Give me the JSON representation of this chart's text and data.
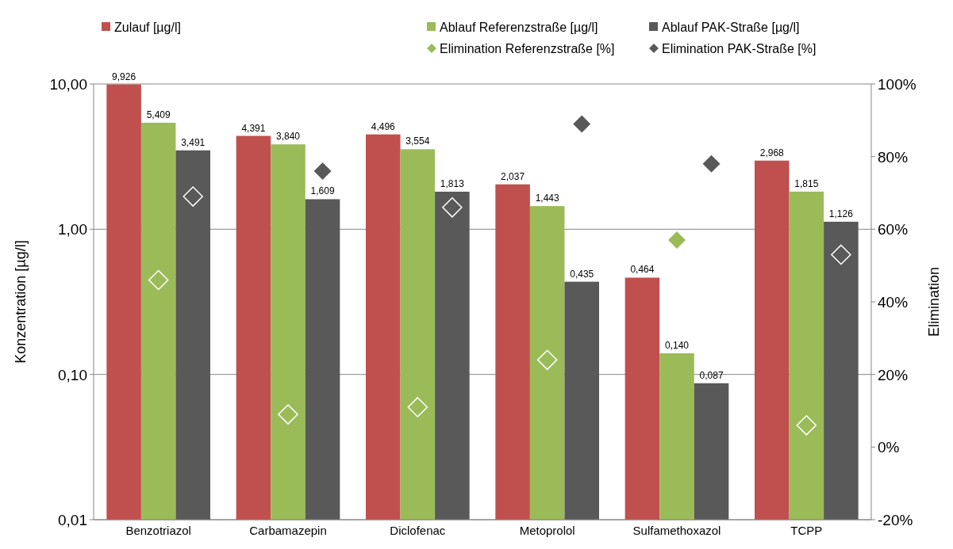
{
  "chart_data": {
    "type": "bar",
    "categories": [
      "Benzotriazol",
      "Carbamazepin",
      "Diclofenac",
      "Metoprolol",
      "Sulfamethoxazol",
      "TCPP"
    ],
    "ylabel": "Konzentration [µg/l]",
    "y2label": "Elimination",
    "log": "y",
    "grid": "y",
    "legend": "top",
    "marker": "diamond",
    "ylim": [
      0.01,
      10
    ],
    "yticks": [
      {
        "value": 0.01,
        "label": "0,01"
      },
      {
        "value": 0.1,
        "label": "0,10"
      },
      {
        "value": 1,
        "label": "1,00"
      },
      {
        "value": 10,
        "label": "10,00"
      }
    ],
    "y2lim": [
      -20,
      100
    ],
    "y2ticks": [
      {
        "value": -20,
        "label": "-20%"
      },
      {
        "value": 0,
        "label": "0%"
      },
      {
        "value": 20,
        "label": "20%"
      },
      {
        "value": 40,
        "label": "40%"
      },
      {
        "value": 60,
        "label": "60%"
      },
      {
        "value": 80,
        "label": "80%"
      },
      {
        "value": 100,
        "label": "100%"
      }
    ],
    "series": [
      {
        "name": "Zulauf [µg/l]",
        "color": "#c0504d",
        "values": [
          9.926,
          4.391,
          4.496,
          2.037,
          0.464,
          2.968
        ],
        "value_labels": [
          "9,926",
          "4,391",
          "4,496",
          "2,037",
          "0,464",
          "2,968"
        ]
      },
      {
        "name": "Ablauf Referenzstraße [µg/l]",
        "color": "#9bbb59",
        "values": [
          5.409,
          3.84,
          3.554,
          1.443,
          0.14,
          1.815
        ],
        "value_labels": [
          "5,409",
          "3,840",
          "3,554",
          "1,443",
          "0,140",
          "1,815"
        ]
      },
      {
        "name": "Ablauf PAK-Straße [µg/l]",
        "color": "#595959",
        "values": [
          3.491,
          1.609,
          1.813,
          0.435,
          0.087,
          1.126
        ],
        "value_labels": [
          "3,491",
          "1,609",
          "1,813",
          "0,435",
          "0,087",
          "1,126"
        ]
      },
      {
        "name": "Elimination Referenzstraße [%]",
        "type": "scatter",
        "axis": "y2",
        "color": "#9bbb59",
        "values": [
          46,
          9,
          11,
          24,
          57,
          6
        ]
      },
      {
        "name": "Elimination PAK-Straße [%]",
        "type": "scatter",
        "axis": "y2",
        "color": "#595959",
        "values": [
          69,
          76,
          66,
          89,
          78,
          53
        ]
      }
    ]
  }
}
